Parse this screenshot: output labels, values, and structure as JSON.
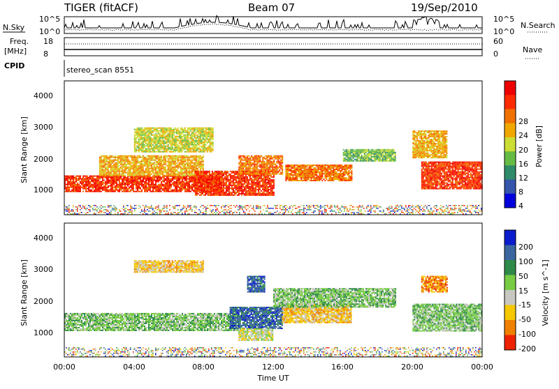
{
  "header": {
    "radar": "TIGER (fitACF)",
    "beam": "Beam 07",
    "date": "19/Sep/2010"
  },
  "noise_panel": {
    "left_label": "N.Sky",
    "left_ticks": [
      "10^5",
      "10^0"
    ],
    "right_ticks": [
      "10^5",
      "10^0"
    ],
    "right_label": "N.Search"
  },
  "freq_panel": {
    "left_label_1": "Freq.",
    "left_label_2": "[MHz]",
    "left_ticks": [
      "18",
      "8"
    ],
    "right_ticks": [
      "60",
      "0"
    ],
    "right_label": "Nave"
  },
  "cpid_panel": {
    "label": "CPID",
    "value": "stereo_scan 8551"
  },
  "power_panel": {
    "ylabel": "Slant Range [km]",
    "yticks": [
      "4000",
      "3000",
      "2000",
      "1000"
    ],
    "colorbar_label": "Power [dB]",
    "colorbar_ticks": [
      "28",
      "24",
      "20",
      "16",
      "12",
      "8",
      "4"
    ],
    "colors": [
      "#0000dd",
      "#3355aa",
      "#2f8a6a",
      "#66bb44",
      "#ccdd33",
      "#f0a800",
      "#f07000",
      "#ff2a00",
      "#ee0000"
    ]
  },
  "velocity_panel": {
    "ylabel": "Slant Range [km]",
    "yticks": [
      "4000",
      "3000",
      "2000",
      "1000"
    ],
    "colorbar_label": "Velocity [m s^-1]",
    "colorbar_ticks": [
      "200",
      "100",
      "50",
      "15",
      "-15",
      "-50",
      "-100",
      "-200"
    ],
    "colors": [
      "#0a1ccc",
      "#3a66a0",
      "#2f8a4a",
      "#77cc44",
      "#c8c8c0",
      "#f5c800",
      "#f08000",
      "#ee2200"
    ]
  },
  "xaxis": {
    "label": "Time UT",
    "ticks": [
      "00:00",
      "04:00",
      "08:00",
      "12:00",
      "16:00",
      "20:00",
      "00:00"
    ]
  },
  "chart_data": [
    {
      "type": "heatmap",
      "title": "Power",
      "x_range_hours": [
        0,
        24
      ],
      "y_range_km": [
        180,
        4500
      ],
      "colorbar_range_db": [
        0,
        32
      ],
      "regions": [
        {
          "start_h": 0.0,
          "end_h": 9.0,
          "low_km": 950,
          "high_km": 1450,
          "value": 26
        },
        {
          "start_h": 2.0,
          "end_h": 8.0,
          "low_km": 1450,
          "high_km": 2100,
          "value": 20
        },
        {
          "start_h": 4.0,
          "end_h": 8.5,
          "low_km": 2200,
          "high_km": 3000,
          "value": 16
        },
        {
          "start_h": 7.5,
          "end_h": 12.0,
          "low_km": 800,
          "high_km": 1600,
          "value": 26
        },
        {
          "start_h": 10.0,
          "end_h": 12.5,
          "low_km": 1500,
          "high_km": 2100,
          "value": 22
        },
        {
          "start_h": 12.7,
          "end_h": 16.5,
          "low_km": 1300,
          "high_km": 1800,
          "value": 22
        },
        {
          "start_h": 16.0,
          "end_h": 19.0,
          "low_km": 1900,
          "high_km": 2300,
          "value": 10
        },
        {
          "start_h": 20.5,
          "end_h": 24.0,
          "low_km": 1000,
          "high_km": 1900,
          "value": 26
        },
        {
          "start_h": 20.0,
          "end_h": 22.0,
          "low_km": 2000,
          "high_km": 2900,
          "value": 18
        }
      ]
    },
    {
      "type": "heatmap",
      "title": "Velocity",
      "x_range_hours": [
        0,
        24
      ],
      "y_range_km": [
        180,
        4500
      ],
      "colorbar_range_ms": [
        -250,
        250
      ],
      "regions": [
        {
          "start_h": 0.0,
          "end_h": 10.0,
          "low_km": 1050,
          "high_km": 1600,
          "value": 0
        },
        {
          "start_h": 9.5,
          "end_h": 12.5,
          "low_km": 1100,
          "high_km": 1800,
          "value": 150
        },
        {
          "start_h": 10.0,
          "end_h": 12.0,
          "low_km": 700,
          "high_km": 1100,
          "value": -60
        },
        {
          "start_h": 12.5,
          "end_h": 16.5,
          "low_km": 1300,
          "high_km": 1900,
          "value": -120
        },
        {
          "start_h": 12.0,
          "end_h": 19.0,
          "low_km": 1800,
          "high_km": 2400,
          "value": 0
        },
        {
          "start_h": 10.5,
          "end_h": 11.5,
          "low_km": 2300,
          "high_km": 2800,
          "value": 200
        },
        {
          "start_h": 4.0,
          "end_h": 8.0,
          "low_km": 2900,
          "high_km": 3300,
          "value": -80
        },
        {
          "start_h": 20.0,
          "end_h": 24.0,
          "low_km": 1000,
          "high_km": 1900,
          "value": 0
        },
        {
          "start_h": 20.5,
          "end_h": 22.0,
          "low_km": 2300,
          "high_km": 2800,
          "value": -150
        }
      ]
    }
  ]
}
